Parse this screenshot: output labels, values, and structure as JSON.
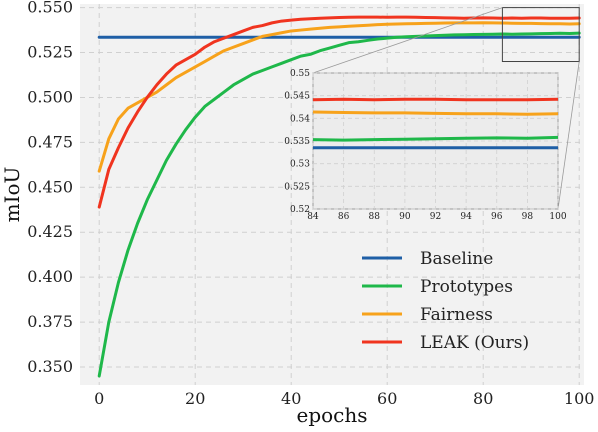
{
  "chart_data": {
    "type": "line",
    "xlabel": "epochs",
    "ylabel": "mIoU",
    "xlim": [
      -4,
      101
    ],
    "ylim": [
      0.34,
      0.552
    ],
    "xticks": [
      0,
      20,
      40,
      60,
      80,
      100
    ],
    "yticks": [
      0.35,
      0.375,
      0.4,
      0.425,
      0.45,
      0.475,
      0.5,
      0.525,
      0.55
    ],
    "ytick_labels": [
      "0.350",
      "0.375",
      "0.400",
      "0.425",
      "0.450",
      "0.475",
      "0.500",
      "0.525",
      "0.550"
    ],
    "grid": true,
    "legend_position": "lower-right",
    "colors": {
      "Baseline": "#1f5fa6",
      "Prototypes": "#1fb84a",
      "Fairness": "#f7a21b",
      "LEAK (Ours)": "#f0341f",
      "background": "#f2f2f2",
      "grid": "#d0d0d0"
    },
    "series": [
      {
        "name": "Baseline",
        "x": [
          0,
          100
        ],
        "y": [
          0.5335,
          0.5335
        ]
      },
      {
        "name": "Prototypes",
        "x": [
          0,
          2,
          4,
          6,
          8,
          10,
          12,
          14,
          16,
          18,
          20,
          22,
          24,
          26,
          28,
          30,
          32,
          34,
          36,
          38,
          40,
          42,
          44,
          46,
          48,
          50,
          52,
          54,
          56,
          58,
          60,
          62,
          64,
          66,
          68,
          70,
          72,
          74,
          76,
          78,
          80,
          82,
          84,
          86,
          88,
          90,
          92,
          94,
          96,
          98,
          100
        ],
        "y": [
          0.345,
          0.375,
          0.397,
          0.415,
          0.43,
          0.443,
          0.454,
          0.465,
          0.474,
          0.482,
          0.489,
          0.495,
          0.499,
          0.503,
          0.507,
          0.51,
          0.513,
          0.515,
          0.517,
          0.519,
          0.521,
          0.523,
          0.524,
          0.526,
          0.5275,
          0.529,
          0.5305,
          0.531,
          0.5318,
          0.5325,
          0.533,
          0.5335,
          0.5338,
          0.534,
          0.5342,
          0.5344,
          0.5346,
          0.5348,
          0.5349,
          0.535,
          0.5351,
          0.5352,
          0.5353,
          0.5352,
          0.5353,
          0.5354,
          0.5355,
          0.5356,
          0.5357,
          0.5356,
          0.5358
        ]
      },
      {
        "name": "Fairness",
        "x": [
          0,
          2,
          4,
          6,
          8,
          10,
          12,
          14,
          16,
          18,
          20,
          22,
          24,
          26,
          28,
          30,
          32,
          34,
          36,
          38,
          40,
          42,
          44,
          46,
          48,
          50,
          52,
          54,
          56,
          58,
          60,
          62,
          64,
          66,
          68,
          70,
          72,
          74,
          76,
          78,
          80,
          82,
          84,
          86,
          88,
          90,
          92,
          94,
          96,
          98,
          100
        ],
        "y": [
          0.459,
          0.477,
          0.488,
          0.494,
          0.497,
          0.5,
          0.503,
          0.507,
          0.511,
          0.514,
          0.517,
          0.52,
          0.523,
          0.526,
          0.528,
          0.53,
          0.532,
          0.534,
          0.535,
          0.536,
          0.537,
          0.5375,
          0.538,
          0.5385,
          0.539,
          0.5393,
          0.5396,
          0.5399,
          0.5402,
          0.5405,
          0.5407,
          0.5409,
          0.541,
          0.5411,
          0.5412,
          0.5413,
          0.5414,
          0.5415,
          0.5415,
          0.5415,
          0.5416,
          0.5415,
          0.5414,
          0.5413,
          0.5412,
          0.5412,
          0.5411,
          0.541,
          0.541,
          0.5409,
          0.541
        ]
      },
      {
        "name": "LEAK (Ours)",
        "x": [
          0,
          2,
          4,
          6,
          8,
          10,
          12,
          14,
          16,
          18,
          20,
          22,
          24,
          26,
          28,
          30,
          32,
          34,
          36,
          38,
          40,
          42,
          44,
          46,
          48,
          50,
          52,
          54,
          56,
          58,
          60,
          62,
          64,
          66,
          68,
          70,
          72,
          74,
          76,
          78,
          80,
          82,
          84,
          86,
          88,
          90,
          92,
          94,
          96,
          98,
          100
        ],
        "y": [
          0.439,
          0.46,
          0.472,
          0.483,
          0.492,
          0.5,
          0.507,
          0.513,
          0.518,
          0.521,
          0.524,
          0.528,
          0.531,
          0.533,
          0.535,
          0.537,
          0.539,
          0.54,
          0.5415,
          0.5425,
          0.543,
          0.5435,
          0.5438,
          0.5441,
          0.5443,
          0.5445,
          0.5446,
          0.5447,
          0.5447,
          0.5447,
          0.5446,
          0.5447,
          0.5447,
          0.5446,
          0.5445,
          0.5444,
          0.5443,
          0.5442,
          0.5441,
          0.5442,
          0.5443,
          0.5442,
          0.5441,
          0.5442,
          0.5441,
          0.5442,
          0.5442,
          0.5441,
          0.5441,
          0.5441,
          0.5442
        ]
      }
    ],
    "inset": {
      "xlim": [
        84,
        100
      ],
      "ylim": [
        0.52,
        0.55
      ],
      "xticks": [
        84,
        86,
        88,
        90,
        92,
        94,
        96,
        98,
        100
      ],
      "yticks": [
        0.52,
        0.525,
        0.53,
        0.535,
        0.54,
        0.545,
        0.55
      ],
      "ytick_labels": [
        "0.52",
        "0.525",
        "0.53",
        "0.535",
        "0.54",
        "0.545",
        "0.55"
      ]
    }
  }
}
